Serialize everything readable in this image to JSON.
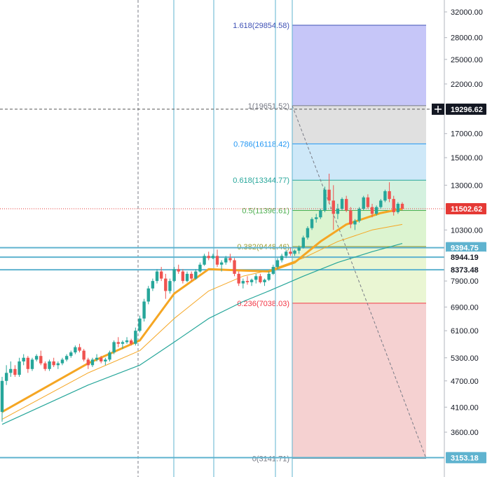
{
  "chart_data": {
    "type": "candlestick",
    "title": "",
    "y_scale": "log",
    "ylim": [
      3141.71,
      35000
    ],
    "y_ticks": [
      "32000.00",
      "28000.00",
      "25000.00",
      "22000.00",
      "19296.62",
      "17000.00",
      "15000.00",
      "13000.00",
      "11502.62",
      "10300.00",
      "9394.75",
      "8944.19",
      "8373.48",
      "7900.00",
      "6900.00",
      "6100.00",
      "5300.00",
      "4700.00",
      "4100.00",
      "3600.00",
      "3153.18"
    ],
    "y_tick_values": [
      32000,
      28000,
      25000,
      22000,
      19296.62,
      17000,
      15000,
      13000,
      11502.62,
      10300,
      9394.75,
      8944.19,
      8373.48,
      7900,
      6900,
      6100,
      5300,
      4700,
      4100,
      3600,
      3153.18
    ],
    "price_tags": [
      {
        "label": "19296.62",
        "value": 19296.62,
        "color": "#131722",
        "crosshair": true
      },
      {
        "label": "11502.62",
        "value": 11502.62,
        "color": "#e53935"
      },
      {
        "label": "9394.75",
        "value": 9394.75,
        "color": "#5fb3cf"
      },
      {
        "label": "8944.19",
        "value": 8944.19,
        "color": "#ffffff"
      },
      {
        "label": "8373.48",
        "value": 8373.48,
        "color": "#ffffff"
      },
      {
        "label": "3153.18",
        "value": 3153.18,
        "color": "#5fb3cf"
      }
    ],
    "horizontal_lines": [
      9394.75,
      8944.19,
      8373.48,
      3153.18
    ],
    "fibonacci": {
      "levels": [
        {
          "label": "1.618(29854.58)",
          "value": 29854.58,
          "color": "#3f51b5",
          "fill": "#b3b3f5"
        },
        {
          "label": "1(19651.52)",
          "value": 19651.52,
          "color": "#787b86",
          "fill": "#d6d6d6"
        },
        {
          "label": "0.786(16118.42)",
          "value": 16118.42,
          "color": "#2196f3",
          "fill": "#bde0f5"
        },
        {
          "label": "0.618(13344.77)",
          "value": 13344.77,
          "color": "#26a69a",
          "fill": "#c6ecd4"
        },
        {
          "label": "0.5(11396.61)",
          "value": 11396.61,
          "color": "#4caf50",
          "fill": "#d0f0c0"
        },
        {
          "label": "0.382(9448.46)",
          "value": 9448.46,
          "color": "#9e9e31",
          "fill": "#e3f3c4"
        },
        {
          "label": "0.236(7038.03)",
          "value": 7038.03,
          "color": "#f23645",
          "fill": "#f2c2c2"
        },
        {
          "label": "0(3141.71)",
          "value": 3141.71,
          "color": "#787b86",
          "fill": "#f2c2c2"
        }
      ]
    },
    "candles": [
      [
        4000,
        4800,
        3800,
        4700
      ],
      [
        4700,
        5100,
        4600,
        4900
      ],
      [
        4900,
        5200,
        4800,
        5000
      ],
      [
        5000,
        5100,
        4800,
        4850
      ],
      [
        4850,
        5300,
        4800,
        5200
      ],
      [
        5200,
        5400,
        5100,
        5300
      ],
      [
        5300,
        5350,
        4900,
        5000
      ],
      [
        5000,
        5300,
        4950,
        5250
      ],
      [
        5250,
        5400,
        5200,
        5350
      ],
      [
        5350,
        5500,
        5100,
        5150
      ],
      [
        5150,
        5200,
        4950,
        5000
      ],
      [
        5000,
        5250,
        4950,
        5200
      ],
      [
        5200,
        5300,
        5050,
        5100
      ],
      [
        5100,
        5200,
        5000,
        5150
      ],
      [
        5150,
        5300,
        5100,
        5250
      ],
      [
        5250,
        5400,
        5200,
        5350
      ],
      [
        5350,
        5500,
        5300,
        5450
      ],
      [
        5450,
        5650,
        5400,
        5600
      ],
      [
        5600,
        5700,
        5450,
        5500
      ],
      [
        5500,
        5550,
        5200,
        5250
      ],
      [
        5250,
        5300,
        5000,
        5100
      ],
      [
        5100,
        5300,
        5050,
        5250
      ],
      [
        5250,
        5400,
        5200,
        5300
      ],
      [
        5300,
        5350,
        5150,
        5200
      ],
      [
        5200,
        5300,
        5100,
        5250
      ],
      [
        5250,
        5500,
        5200,
        5450
      ],
      [
        5450,
        5800,
        5400,
        5750
      ],
      [
        5750,
        5900,
        5600,
        5700
      ],
      [
        5700,
        5800,
        5550,
        5750
      ],
      [
        5750,
        5900,
        5700,
        5800
      ],
      [
        5800,
        5850,
        5650,
        5700
      ],
      [
        5700,
        6200,
        5650,
        6100
      ],
      [
        6100,
        6600,
        6050,
        6500
      ],
      [
        6500,
        7200,
        6400,
        7100
      ],
      [
        7100,
        7700,
        7000,
        7600
      ],
      [
        7600,
        8000,
        7500,
        7900
      ],
      [
        7900,
        8400,
        7800,
        8300
      ],
      [
        8300,
        8500,
        7900,
        8000
      ],
      [
        8000,
        8200,
        7200,
        7500
      ],
      [
        7500,
        8000,
        7400,
        7900
      ],
      [
        7900,
        8500,
        7850,
        8400
      ],
      [
        8400,
        8600,
        8200,
        8300
      ],
      [
        8300,
        8400,
        7800,
        7900
      ],
      [
        7900,
        8300,
        7850,
        8200
      ],
      [
        8200,
        8300,
        7900,
        8000
      ],
      [
        8000,
        8400,
        7950,
        8300
      ],
      [
        8300,
        8700,
        8250,
        8600
      ],
      [
        8600,
        9100,
        8550,
        9000
      ],
      [
        9000,
        9200,
        8800,
        8900
      ],
      [
        8900,
        9100,
        8850,
        9000
      ],
      [
        9000,
        9300,
        8500,
        8600
      ],
      [
        8600,
        8800,
        8300,
        8700
      ],
      [
        8700,
        9000,
        8600,
        8900
      ],
      [
        8900,
        9100,
        8700,
        8800
      ],
      [
        8800,
        8900,
        8100,
        8200
      ],
      [
        8200,
        8300,
        7700,
        7800
      ],
      [
        7800,
        8000,
        7600,
        7900
      ],
      [
        7900,
        8100,
        7750,
        7850
      ],
      [
        7850,
        8000,
        7700,
        7950
      ],
      [
        7950,
        8200,
        7800,
        8100
      ],
      [
        8100,
        8200,
        7800,
        7850
      ],
      [
        7850,
        8000,
        7700,
        7950
      ],
      [
        7950,
        8300,
        7900,
        8200
      ],
      [
        8200,
        8600,
        8150,
        8500
      ],
      [
        8500,
        8900,
        8400,
        8800
      ],
      [
        8800,
        9100,
        8700,
        9000
      ],
      [
        9000,
        9300,
        8900,
        9200
      ],
      [
        9200,
        9400,
        9000,
        9100
      ],
      [
        9100,
        9300,
        9000,
        9250
      ],
      [
        9250,
        9500,
        9100,
        9400
      ],
      [
        9400,
        10000,
        9350,
        9900
      ],
      [
        9900,
        10500,
        9800,
        10400
      ],
      [
        10400,
        11000,
        10300,
        10900
      ],
      [
        10900,
        11200,
        10700,
        11000
      ],
      [
        11000,
        11500,
        10900,
        11400
      ],
      [
        11400,
        12900,
        11300,
        12700
      ],
      [
        12700,
        13800,
        11800,
        12000
      ],
      [
        12000,
        13000,
        10300,
        11200
      ],
      [
        11200,
        11800,
        10900,
        11500
      ],
      [
        11500,
        12200,
        11400,
        12100
      ],
      [
        12100,
        12300,
        11300,
        11400
      ],
      [
        11400,
        11600,
        10400,
        10600
      ],
      [
        10600,
        10900,
        10300,
        10800
      ],
      [
        10800,
        11600,
        10700,
        11500
      ],
      [
        11500,
        12300,
        11400,
        12200
      ],
      [
        12200,
        12400,
        11500,
        11600
      ],
      [
        11600,
        11800,
        11000,
        11200
      ],
      [
        11200,
        11700,
        11100,
        11600
      ],
      [
        11600,
        12100,
        11500,
        12000
      ],
      [
        12000,
        12700,
        11900,
        12600
      ],
      [
        12600,
        13200,
        11900,
        12100
      ],
      [
        12100,
        12300,
        11100,
        11300
      ],
      [
        11300,
        11900,
        11200,
        11800
      ],
      [
        11800,
        11900,
        11400,
        11500
      ]
    ],
    "moving_averages": [
      {
        "color": "#f5a623",
        "width": 3,
        "values": [
          [
            0,
            4000
          ],
          [
            20,
            5150
          ],
          [
            32,
            5800
          ],
          [
            40,
            7400
          ],
          [
            48,
            8400
          ],
          [
            55,
            8350
          ],
          [
            62,
            8300
          ],
          [
            68,
            8700
          ],
          [
            74,
            9700
          ],
          [
            80,
            10600
          ],
          [
            88,
            11250
          ],
          [
            93,
            11500
          ]
        ]
      },
      {
        "color": "#f5a623",
        "width": 1,
        "values": [
          [
            0,
            3850
          ],
          [
            20,
            4900
          ],
          [
            32,
            5500
          ],
          [
            40,
            6500
          ],
          [
            48,
            7500
          ],
          [
            56,
            8100
          ],
          [
            62,
            8350
          ],
          [
            70,
            8900
          ],
          [
            78,
            9700
          ],
          [
            86,
            10300
          ],
          [
            93,
            10600
          ]
        ]
      },
      {
        "color": "#26a69a",
        "width": 1.2,
        "values": [
          [
            0,
            3750
          ],
          [
            20,
            4600
          ],
          [
            32,
            5100
          ],
          [
            40,
            5750
          ],
          [
            48,
            6500
          ],
          [
            56,
            7100
          ],
          [
            62,
            7500
          ],
          [
            70,
            8100
          ],
          [
            78,
            8700
          ],
          [
            86,
            9200
          ],
          [
            93,
            9600
          ]
        ]
      }
    ]
  }
}
